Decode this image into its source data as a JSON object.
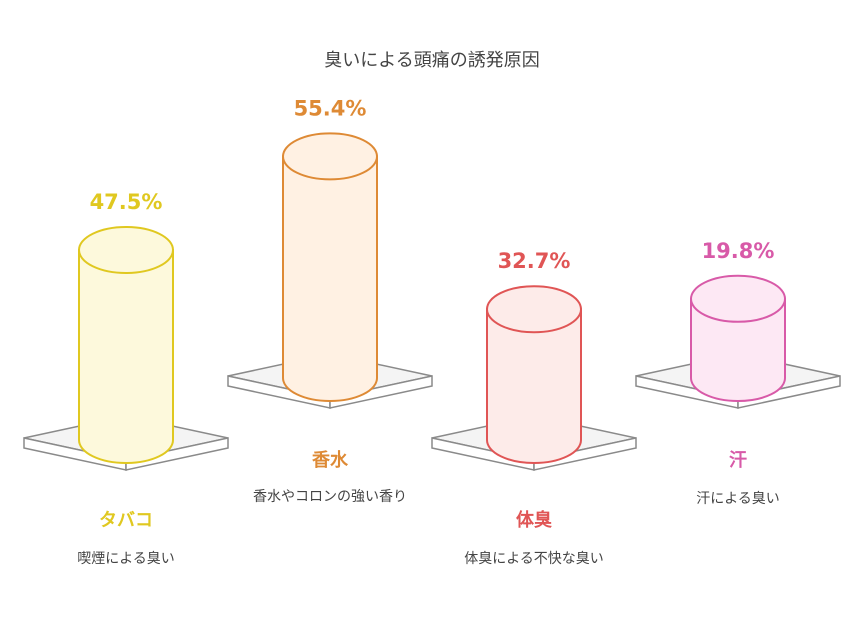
{
  "chart_data": {
    "type": "bar",
    "title": "臭いによる頭痛の誘発原因",
    "unit": "%",
    "series": [
      {
        "category": "タバコ",
        "value": 47.5,
        "value_label": "47.5%",
        "description": "喫煙による臭い",
        "color": "#e0c820",
        "fill": "#fdf9dc"
      },
      {
        "category": "香水",
        "value": 55.4,
        "value_label": "55.4%",
        "description": "香水やコロンの強い香り",
        "color": "#de8a35",
        "fill": "#fff1e3"
      },
      {
        "category": "体臭",
        "value": 32.7,
        "value_label": "32.7%",
        "description": "体臭による不快な臭い",
        "color": "#e05555",
        "fill": "#fdebe9"
      },
      {
        "category": "汗",
        "value": 19.8,
        "value_label": "19.8%",
        "description": "汗による臭い",
        "color": "#d85aa8",
        "fill": "#fde8f4"
      }
    ]
  }
}
